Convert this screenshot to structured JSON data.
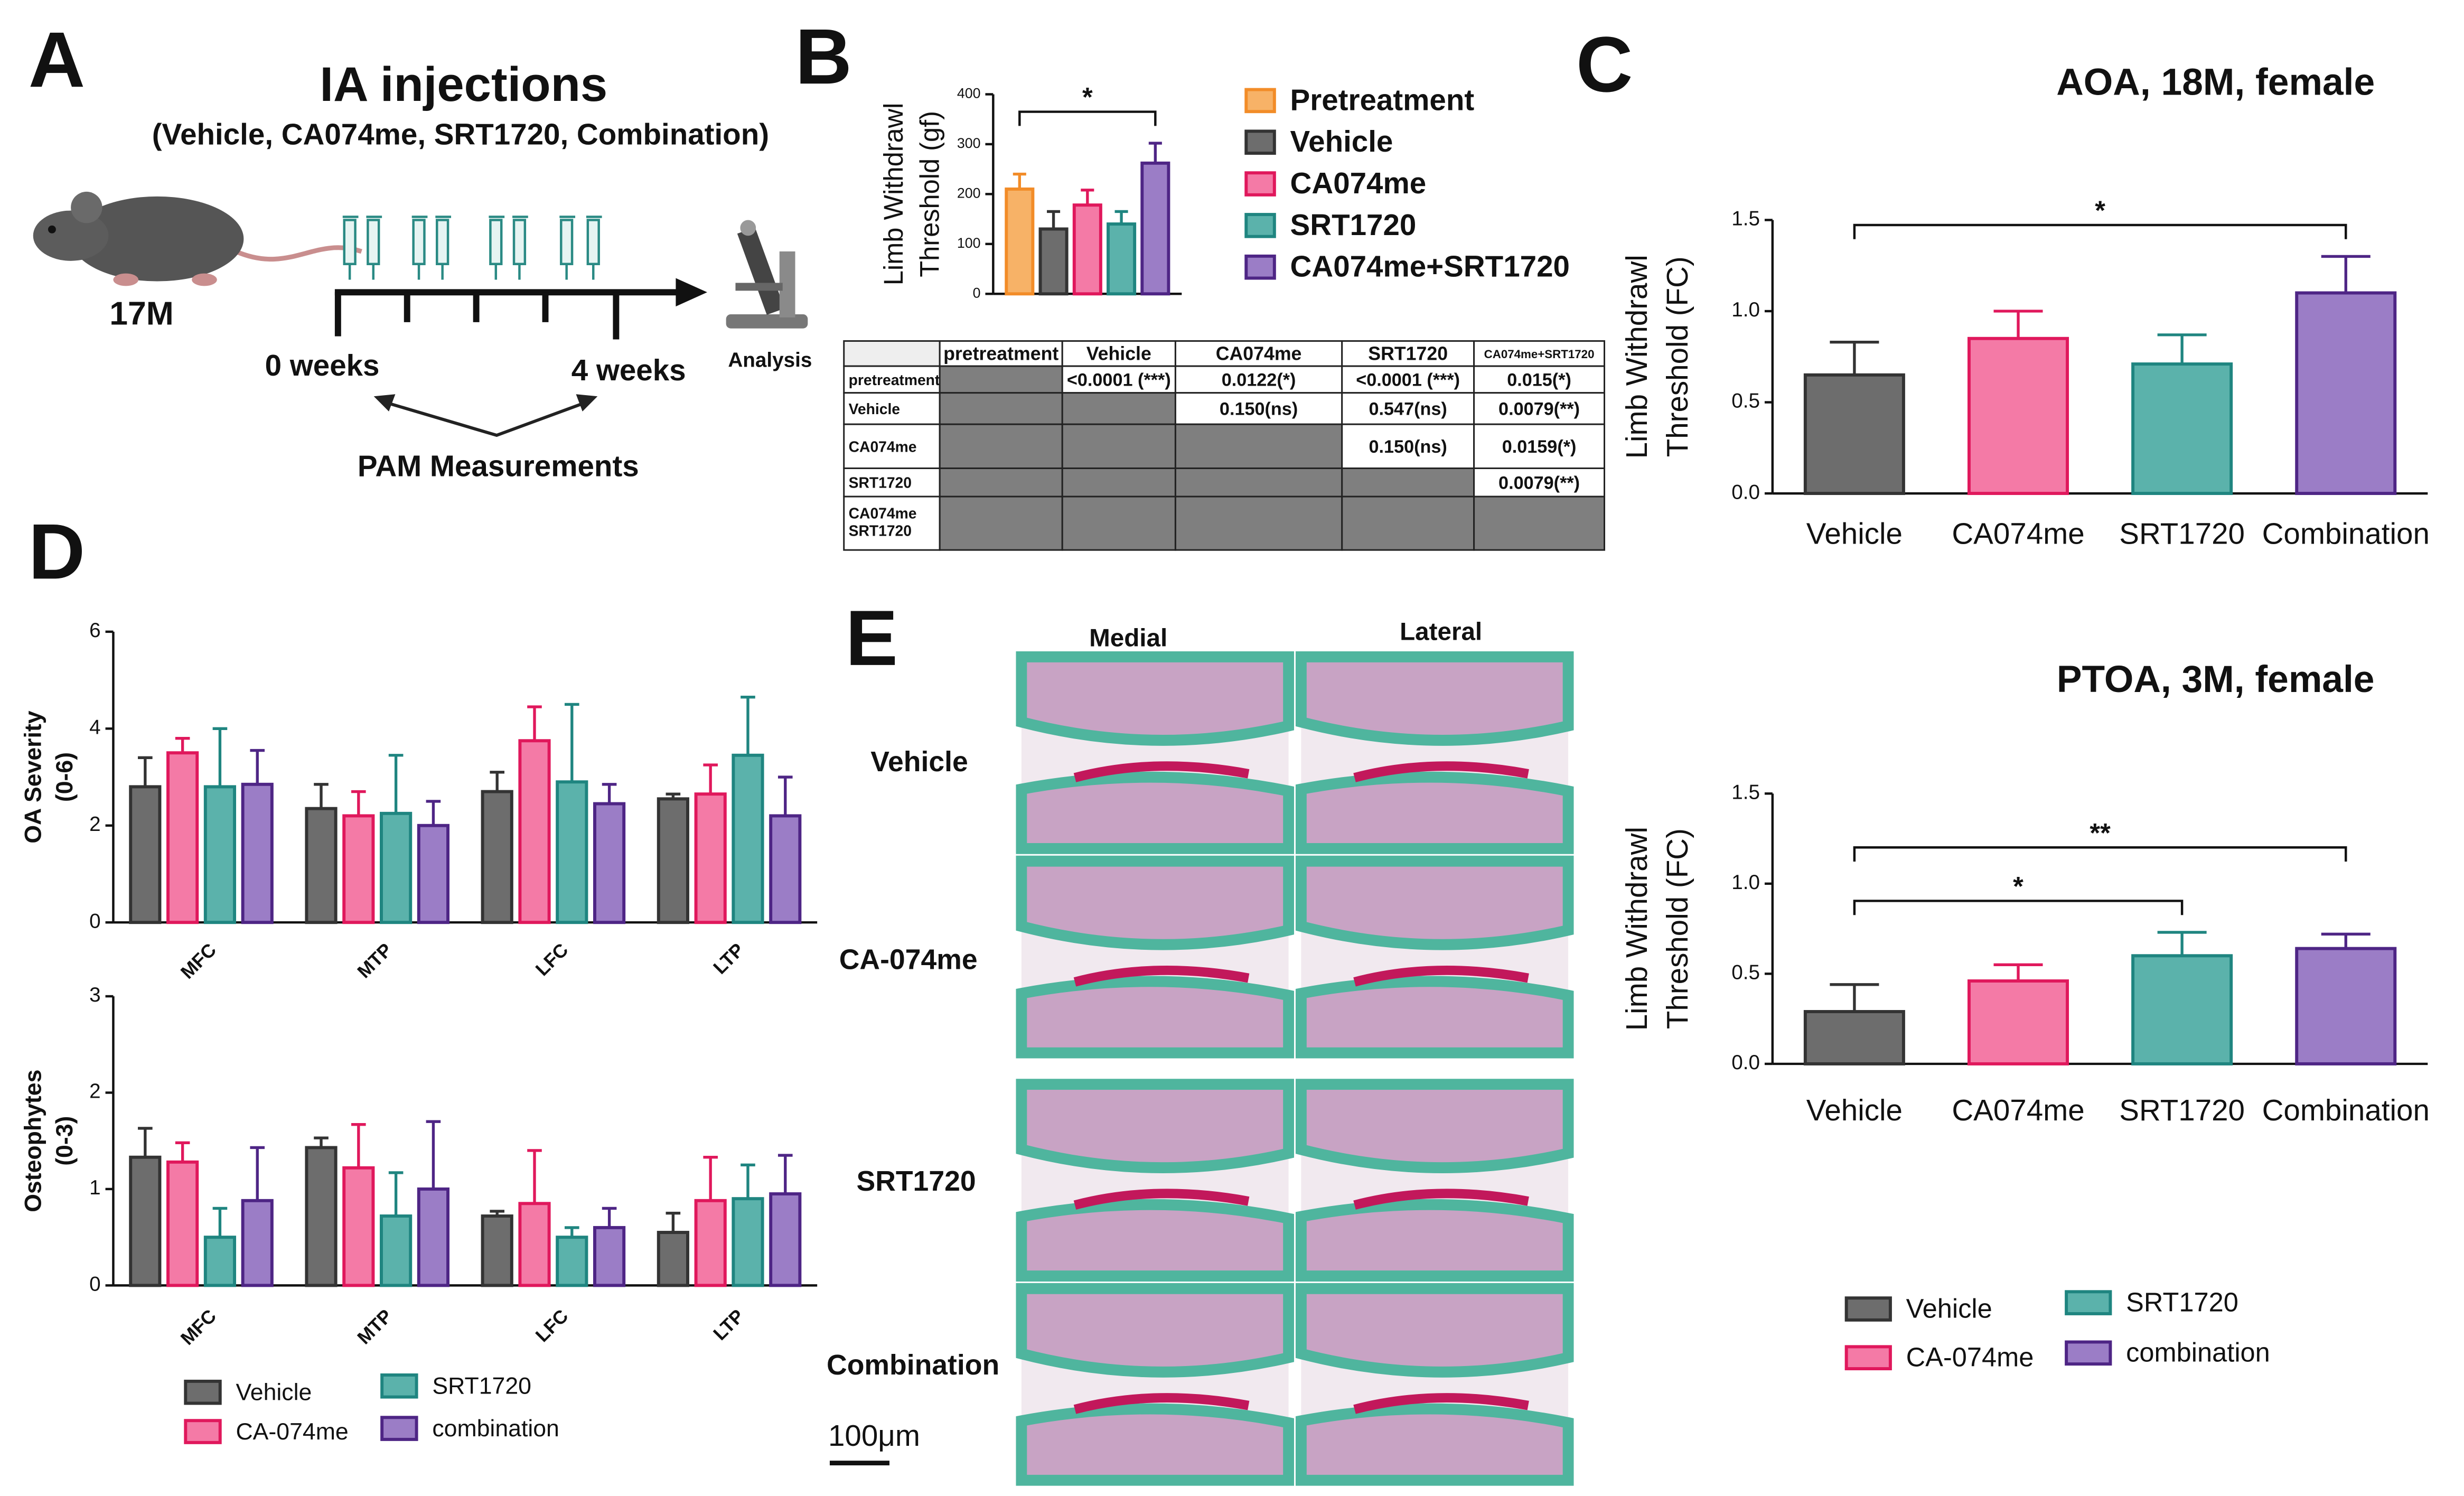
{
  "panel_a": {
    "letter": "A",
    "title": "IA injections",
    "subtitle": "(Vehicle, CA074me, SRT1720, Combination)",
    "age": "17M",
    "start": "0 weeks",
    "end": "4 weeks",
    "measurement": "PAM Measurements",
    "analysis": "Analysis"
  },
  "panel_b": {
    "letter": "B",
    "table": {
      "header": [
        null,
        "pretreatment",
        "Vehicle",
        "CA074me",
        "SRT1720",
        "CA074me+SRT1720"
      ],
      "rows": [
        [
          "pretreatment",
          null,
          "<0.0001 (***)",
          "0.0122(*)",
          "<0.0001 (***)",
          "0.015(*)"
        ],
        [
          "Vehicle",
          null,
          null,
          "0.150(ns)",
          "0.547(ns)",
          "0.0079(**)"
        ],
        [
          "CA074me",
          null,
          null,
          null,
          "0.150(ns)",
          "0.0159(*)"
        ],
        [
          "SRT1720",
          null,
          null,
          null,
          null,
          "0.0079(**)"
        ],
        [
          [
            "CA074me",
            "SRT1720"
          ],
          null,
          null,
          null,
          null,
          null
        ]
      ]
    }
  },
  "panel_c": {
    "letter": "C"
  },
  "panel_d": {
    "letter": "D"
  },
  "panel_e": {
    "letter": "E",
    "columns": [
      "Medial",
      "Lateral"
    ],
    "rows": [
      "Vehicle",
      "CA-074me",
      "SRT1720",
      "Combination"
    ],
    "scale_bar": "100μm"
  },
  "chart_data": [
    {
      "type": "bar",
      "ylabel": [
        "Limb Withdrawl",
        "Threshold (gf)"
      ],
      "categories": [
        null
      ],
      "series": [
        {
          "name": "Pretreatment",
          "color": "#f7b267",
          "edgecolor": "#f28c28",
          "values": [
            210
          ],
          "errors": [
            30
          ]
        },
        {
          "name": "Vehicle",
          "color": "#6d6d6d",
          "edgecolor": "#333333",
          "values": [
            130
          ],
          "errors": [
            35
          ]
        },
        {
          "name": "CA074me",
          "color": "#f47aa6",
          "edgecolor": "#e0185c",
          "values": [
            178
          ],
          "errors": [
            30
          ]
        },
        {
          "name": "SRT1720",
          "color": "#5bb2ab",
          "edgecolor": "#1f8580",
          "values": [
            140
          ],
          "errors": [
            25
          ]
        },
        {
          "name": "CA074me+SRT1720",
          "color": "#9b7dc6",
          "edgecolor": "#4e2585",
          "values": [
            262
          ],
          "errors": [
            40
          ]
        }
      ],
      "ylim": [
        0,
        400
      ],
      "yticks": [
        0,
        100,
        200,
        300,
        400
      ],
      "significance": [
        {
          "text": "*",
          "between": [
            0,
            4
          ]
        }
      ]
    },
    {
      "type": "bar",
      "title": "AOA, 18M, female",
      "ylabel": [
        "Limb Withdrawl",
        "Threshold (FC)"
      ],
      "categories": [
        "Vehicle",
        "CA074me",
        "SRT1720",
        "Combination"
      ],
      "series": [
        {
          "values": [
            0.65,
            0.85,
            0.71,
            1.1
          ],
          "errors": [
            0.18,
            0.15,
            0.16,
            0.2
          ],
          "colors": [
            "#6d6d6d",
            "#f47aa6",
            "#5bb2ab",
            "#9b7dc6"
          ],
          "edgecolors": [
            "#333333",
            "#e0185c",
            "#1f8580",
            "#4e2585"
          ]
        }
      ],
      "ylim": [
        0,
        1.5
      ],
      "yticks": [
        {
          "value": 0,
          "label": "0.0"
        },
        {
          "value": 0.5,
          "label": "0.5"
        },
        {
          "value": 1,
          "label": "1.0"
        },
        {
          "value": 1.5,
          "label": "1.5"
        }
      ],
      "significance": [
        {
          "text": "*",
          "between": [
            0,
            3
          ]
        }
      ]
    },
    {
      "type": "bar",
      "title": "PTOA, 3M, female",
      "ylabel": [
        "Limb Withdrawl",
        "Threshold (FC)"
      ],
      "categories": [
        "Vehicle",
        "CA074me",
        "SRT1720",
        "Combination"
      ],
      "series": [
        {
          "values": [
            0.29,
            0.46,
            0.6,
            0.64
          ],
          "errors": [
            0.15,
            0.09,
            0.13,
            0.08
          ],
          "colors": [
            "#6d6d6d",
            "#f47aa6",
            "#5bb2ab",
            "#9b7dc6"
          ],
          "edgecolors": [
            "#333333",
            "#e0185c",
            "#1f8580",
            "#4e2585"
          ]
        }
      ],
      "ylim": [
        0,
        1.5
      ],
      "yticks": [
        {
          "value": 0,
          "label": "0.0"
        },
        {
          "value": 0.5,
          "label": "0.5"
        },
        {
          "value": 1,
          "label": "1.0"
        },
        {
          "value": 1.5,
          "label": "1.5"
        }
      ],
      "significance": [
        {
          "text": "*",
          "between": [
            0,
            2
          ]
        },
        {
          "text": "**",
          "between": [
            0,
            3
          ]
        }
      ],
      "legend": [
        "Vehicle",
        "CA-074me",
        "SRT1720",
        "combination"
      ]
    },
    {
      "type": "bar",
      "ylabel": [
        "OA Severity",
        "(0-6)"
      ],
      "categories": [
        "MFC",
        "MTP",
        "LFC",
        "LTP"
      ],
      "series": [
        {
          "name": "Vehicle",
          "color": "#6d6d6d",
          "edgecolor": "#333333",
          "values": [
            2.8,
            2.35,
            2.7,
            2.55
          ],
          "errors": [
            0.6,
            0.5,
            0.4,
            0.1
          ]
        },
        {
          "name": "CA-074me",
          "color": "#f47aa6",
          "edgecolor": "#e0185c",
          "values": [
            3.5,
            2.2,
            3.75,
            2.65
          ],
          "errors": [
            0.3,
            0.5,
            0.7,
            0.6
          ]
        },
        {
          "name": "SRT1720",
          "color": "#5bb2ab",
          "edgecolor": "#1f8580",
          "values": [
            2.8,
            2.25,
            2.9,
            3.45
          ],
          "errors": [
            1.2,
            1.2,
            1.6,
            1.2
          ]
        },
        {
          "name": "combination",
          "color": "#9b7dc6",
          "edgecolor": "#4e2585",
          "values": [
            2.85,
            2.0,
            2.45,
            2.2
          ],
          "errors": [
            0.7,
            0.5,
            0.4,
            0.8
          ]
        }
      ],
      "ylim": [
        0,
        6
      ],
      "yticks": [
        0,
        2,
        4,
        6
      ]
    },
    {
      "type": "bar",
      "ylabel": [
        "Osteophytes",
        "(0-3)"
      ],
      "categories": [
        "MFC",
        "MTP",
        "LFC",
        "LTP"
      ],
      "series": [
        {
          "color": "#6d6d6d",
          "edgecolor": "#333333",
          "values": [
            1.33,
            1.43,
            0.72,
            0.55
          ],
          "errors": [
            0.3,
            0.1,
            0.05,
            0.2
          ]
        },
        {
          "color": "#f47aa6",
          "edgecolor": "#e0185c",
          "values": [
            1.28,
            1.22,
            0.85,
            0.88
          ],
          "errors": [
            0.2,
            0.45,
            0.55,
            0.45
          ]
        },
        {
          "color": "#5bb2ab",
          "edgecolor": "#1f8580",
          "values": [
            0.5,
            0.72,
            0.5,
            0.9
          ],
          "errors": [
            0.3,
            0.45,
            0.1,
            0.35
          ]
        },
        {
          "color": "#9b7dc6",
          "edgecolor": "#4e2585",
          "values": [
            0.88,
            1.0,
            0.6,
            0.95
          ],
          "errors": [
            0.55,
            0.7,
            0.2,
            0.4
          ]
        }
      ],
      "ylim": [
        0,
        3
      ],
      "yticks": [
        0,
        1,
        2,
        3
      ]
    }
  ]
}
